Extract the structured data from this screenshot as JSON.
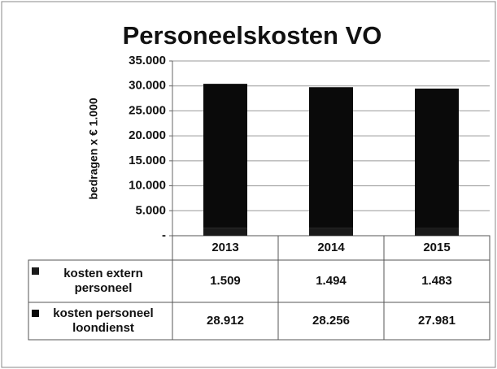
{
  "chart_data": {
    "type": "stacked_bar",
    "title": "Personeelskosten VO",
    "y_label": "bedragen x € 1.000",
    "categories": [
      "2013",
      "2014",
      "2015"
    ],
    "series": [
      {
        "name": "kosten extern personeel",
        "color": "#1a1a1a",
        "values": [
          1509,
          1494,
          1483
        ],
        "value_labels": [
          "1.509",
          "1.494",
          "1.483"
        ]
      },
      {
        "name": "kosten personeel loondienst",
        "color": "#0a0a0a",
        "values": [
          28912,
          28256,
          27981
        ],
        "value_labels": [
          "28.912",
          "28.256",
          "27.981"
        ]
      }
    ],
    "ylim": [
      0,
      35000
    ],
    "yticks": [
      {
        "value": 0,
        "label": "-"
      },
      {
        "value": 5000,
        "label": "5.000"
      },
      {
        "value": 10000,
        "label": "10.000"
      },
      {
        "value": 15000,
        "label": "15.000"
      },
      {
        "value": 20000,
        "label": "20.000"
      },
      {
        "value": 25000,
        "label": "25.000"
      },
      {
        "value": 30000,
        "label": "30.000"
      },
      {
        "value": 35000,
        "label": "35.000"
      }
    ],
    "grid": true
  }
}
